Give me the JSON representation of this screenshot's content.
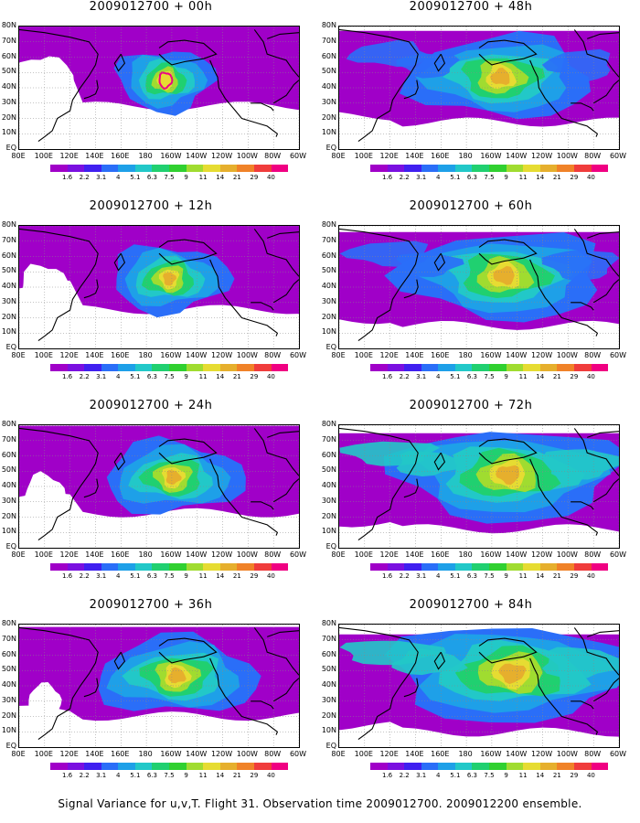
{
  "colorbar": {
    "labels": [
      "1.6",
      "2.2",
      "3.1",
      "4",
      "5.1",
      "6.3",
      "7.5",
      "9",
      "11",
      "14",
      "21",
      "29",
      "40"
    ],
    "colors": [
      "#a000c8",
      "#7a10e0",
      "#4020f0",
      "#2a6ef8",
      "#1ea0e8",
      "#22c8c8",
      "#20d070",
      "#30d030",
      "#a0dc30",
      "#e6dc32",
      "#e6af2d",
      "#f08228",
      "#f03c3c",
      "#f00082"
    ]
  },
  "lat_labels": [
    "80N",
    "70N",
    "60N",
    "50N",
    "40N",
    "30N",
    "20N",
    "10N",
    "EQ"
  ],
  "lon_labels": [
    "80E",
    "100E",
    "120E",
    "140E",
    "160E",
    "180",
    "160W",
    "140W",
    "120W",
    "100W",
    "80W",
    "60W"
  ],
  "panels": [
    {
      "title": "2009012700 + 00h",
      "level": 0
    },
    {
      "title": "2009012700 + 12h",
      "level": 1
    },
    {
      "title": "2009012700 + 24h",
      "level": 2
    },
    {
      "title": "2009012700 + 36h",
      "level": 3
    },
    {
      "title": "2009012700 + 48h",
      "level": 4
    },
    {
      "title": "2009012700 + 60h",
      "level": 5
    },
    {
      "title": "2009012700 + 72h",
      "level": 6
    },
    {
      "title": "2009012700 + 84h",
      "level": 7
    }
  ],
  "caption": "Signal Variance for u,v,T. Flight 31. Observation time 2009012700. 2009012200 ensemble."
}
